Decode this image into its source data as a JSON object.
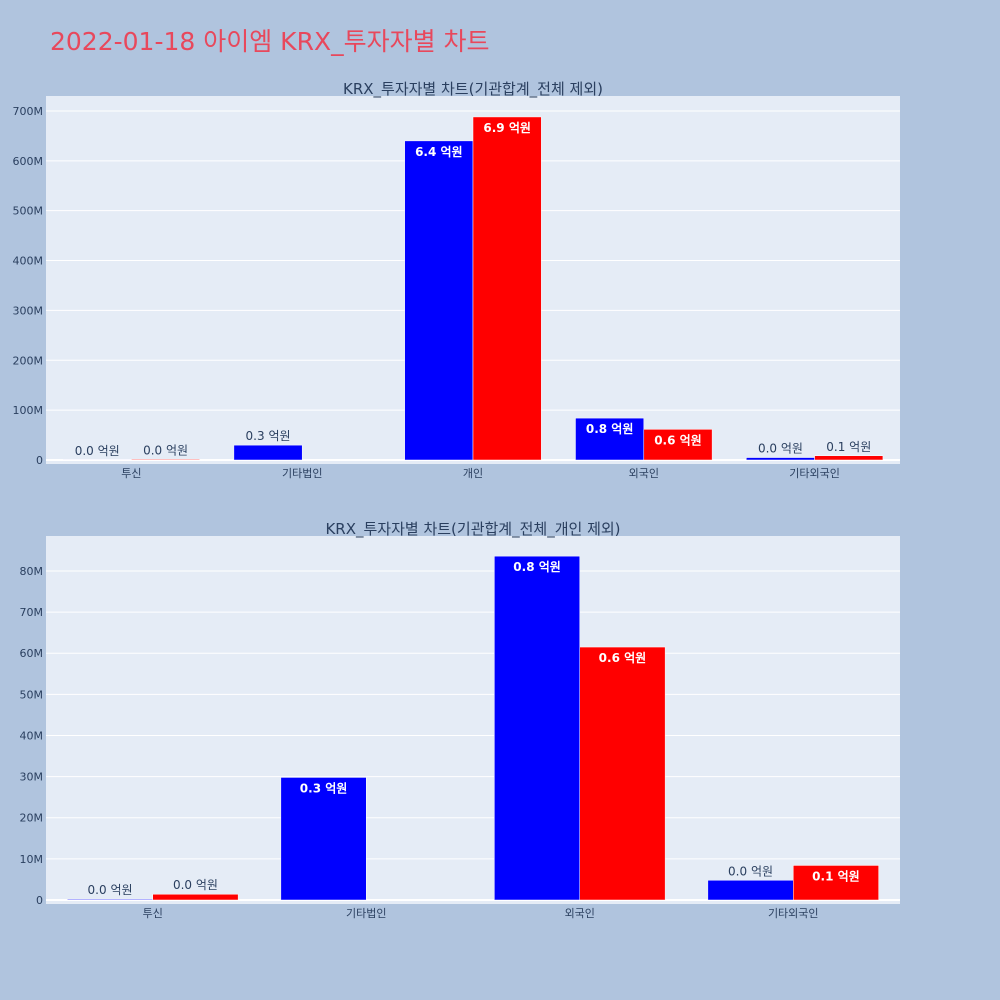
{
  "title": "2022-01-18 아이엠 KRX_투자자별 차트",
  "colors": {
    "buy": "#0000ff",
    "sell": "#ff0000",
    "plot_bg": "#e5ecf6",
    "page_bg": "#b0c4de",
    "title": "#e8485c"
  },
  "chart_data": [
    {
      "type": "bar",
      "title": "KRX_투자자별 차트(기관합계_전체 제외)",
      "categories": [
        "투신",
        "기타법인",
        "개인",
        "외국인",
        "기타외국인"
      ],
      "series": [
        {
          "values": [
            200000,
            29800000,
            640000000,
            84000000,
            4900000
          ],
          "labels": [
            "0.0 억원",
            "0.3 억원",
            "6.4 억원",
            "0.8 억원",
            "0.0 억원"
          ]
        },
        {
          "values": [
            1500000,
            0,
            688000000,
            61500000,
            8500000
          ],
          "labels": [
            "0.0 억원",
            "",
            "6.9 억원",
            "0.6 억원",
            "0.1 억원"
          ]
        }
      ],
      "yticks": [
        0,
        100000000,
        200000000,
        300000000,
        400000000,
        500000000,
        600000000,
        700000000
      ],
      "ytick_labels": [
        "0",
        "100M",
        "200M",
        "300M",
        "400M",
        "500M",
        "600M",
        "700M"
      ],
      "ylim": [
        0,
        730000000
      ]
    },
    {
      "type": "bar",
      "title": "KRX_투자자별 차트(기관합계_전체_개인 제외)",
      "categories": [
        "투신",
        "기타법인",
        "외국인",
        "기타외국인"
      ],
      "series": [
        {
          "values": [
            200000,
            29800000,
            83600000,
            4800000
          ],
          "labels": [
            "0.0 억원",
            "0.3 억원",
            "0.8 억원",
            "0.0 억원"
          ]
        },
        {
          "values": [
            1400000,
            0,
            61500000,
            8400000
          ],
          "labels": [
            "0.0 억원",
            "",
            "0.6 억원",
            "0.1 억원"
          ]
        }
      ],
      "yticks": [
        0,
        10000000,
        20000000,
        30000000,
        40000000,
        50000000,
        60000000,
        70000000,
        80000000
      ],
      "ytick_labels": [
        "0",
        "10M",
        "20M",
        "30M",
        "40M",
        "50M",
        "60M",
        "70M",
        "80M"
      ],
      "ylim": [
        0,
        88500000
      ]
    }
  ]
}
